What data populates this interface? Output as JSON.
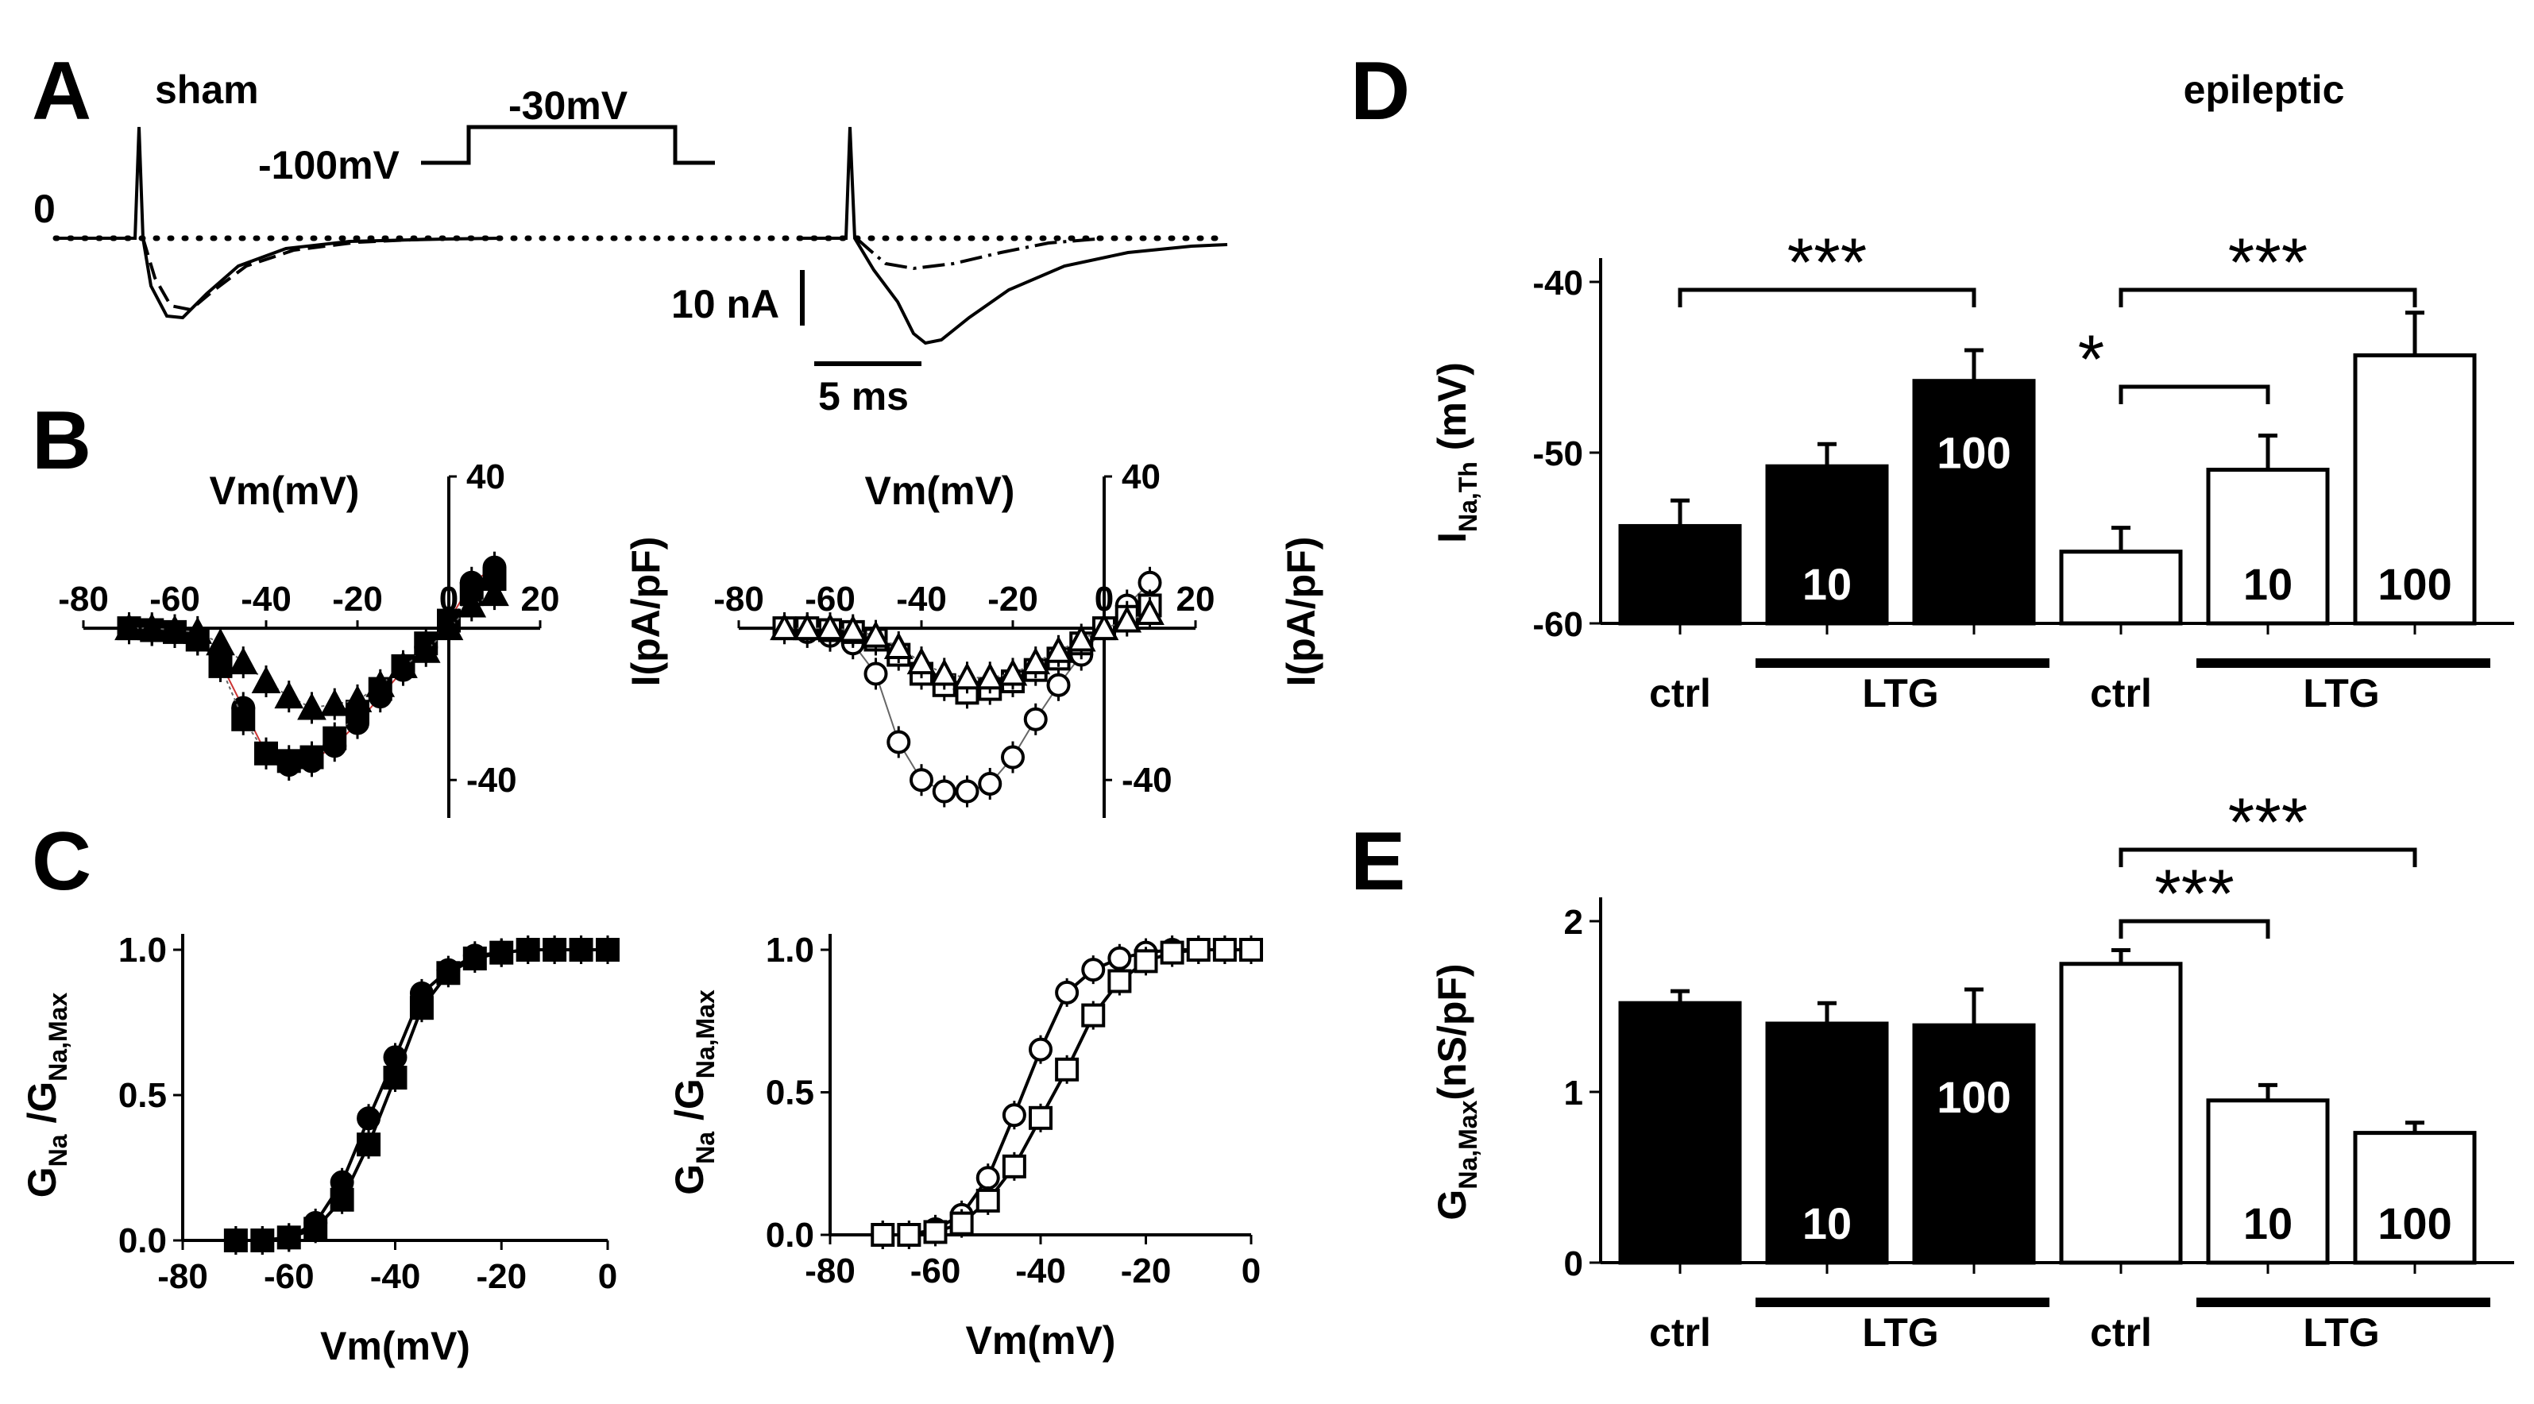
{
  "colors": {
    "ink": "#000000",
    "paper": "#ffffff",
    "red_fit": "#cc3333"
  },
  "chart_data": [
    {
      "panel": "A",
      "type": "line",
      "title": "sham",
      "protocol_labels": [
        "-100mV",
        "-30mV"
      ],
      "zero_label": "0",
      "scale_current": "10 nA",
      "scale_time": "5 ms",
      "traces": [
        {
          "name": "sham trace solid",
          "peak_nA": -16,
          "time_to_peak_ms": 1.2
        },
        {
          "name": "sham trace dashed",
          "peak_nA": -14,
          "time_to_peak_ms": 1.3
        },
        {
          "name": "epileptic trace solid",
          "peak_nA": -20,
          "time_to_peak_ms": 2.3
        },
        {
          "name": "epileptic trace dash-dot",
          "peak_nA": -5,
          "time_to_peak_ms": 1.3
        }
      ]
    },
    {
      "panel": "B-left",
      "type": "scatter",
      "xlabel": "Vm(mV)",
      "ylabel": "I(pA/pF)",
      "xlim": [
        -80,
        20
      ],
      "ylim": [
        -50,
        40
      ],
      "x_ticks": [
        "-80",
        "-60",
        "-40",
        "-20",
        "0",
        "20"
      ],
      "y_ticks": [
        "40",
        "-40"
      ],
      "x": [
        -70,
        -65,
        -60,
        -55,
        -50,
        -45,
        -40,
        -35,
        -30,
        -25,
        -20,
        -15,
        -10,
        -5,
        0,
        5,
        10
      ],
      "series": [
        {
          "name": "ctrl (sham)",
          "marker": "filled-circle",
          "values": [
            0,
            -0.5,
            -1,
            -3,
            -9,
            -21,
            -33,
            -36,
            -35,
            -31,
            -25,
            -18,
            -11,
            -5,
            2,
            12,
            16
          ]
        },
        {
          "name": "LTG 10 (sham)",
          "marker": "filled-square",
          "values": [
            0,
            -0.5,
            -1,
            -3,
            -10,
            -24,
            -33,
            -35,
            -34,
            -29,
            -22,
            -16,
            -10,
            -4,
            2,
            9,
            13
          ]
        },
        {
          "name": "LTG 100 (sham)",
          "marker": "filled-triangle",
          "values": [
            0,
            0,
            -0.5,
            -1,
            -4,
            -9,
            -14,
            -18,
            -21,
            -20,
            -19,
            -15,
            -10,
            -6,
            0,
            6,
            9
          ]
        }
      ]
    },
    {
      "panel": "B-right",
      "type": "scatter",
      "xlabel": "Vm(mV)",
      "ylabel": "I(pA/pF)",
      "xlim": [
        -80,
        20
      ],
      "ylim": [
        -50,
        40
      ],
      "x_ticks": [
        "-80",
        "-60",
        "-40",
        "-20",
        "0",
        "20"
      ],
      "y_ticks": [
        "40",
        "-40"
      ],
      "x": [
        -70,
        -65,
        -60,
        -55,
        -50,
        -45,
        -40,
        -35,
        -30,
        -25,
        -20,
        -15,
        -10,
        -5,
        0,
        5,
        10
      ],
      "series": [
        {
          "name": "ctrl (epileptic)",
          "marker": "open-circle",
          "values": [
            0,
            -1,
            -2,
            -4,
            -12,
            -30,
            -40,
            -43,
            -43,
            -41,
            -34,
            -24,
            -15,
            -7,
            0,
            6,
            12
          ]
        },
        {
          "name": "LTG 10 (epileptic)",
          "marker": "open-square",
          "values": [
            0,
            0,
            -0.5,
            -1,
            -3,
            -7,
            -12,
            -15,
            -17,
            -16,
            -14,
            -11,
            -8,
            -4,
            0,
            3,
            6
          ]
        },
        {
          "name": "LTG 100 (epileptic)",
          "marker": "open-triangle",
          "values": [
            0,
            0,
            0,
            -0.5,
            -2,
            -5,
            -9,
            -12,
            -13,
            -13,
            -12,
            -9,
            -6,
            -3,
            0,
            2,
            4
          ]
        }
      ]
    },
    {
      "panel": "C-left",
      "type": "scatter",
      "xlabel": "Vm(mV)",
      "ylabel_main": "G",
      "ylabel_sub1": "Na",
      "ylabel_mid": " /G",
      "ylabel_sub2": "Na,Max",
      "xlim": [
        -80,
        0
      ],
      "ylim": [
        0,
        1
      ],
      "x_ticks": [
        "-80",
        "-60",
        "-40",
        "-20",
        "0"
      ],
      "y_ticks": [
        "0.0",
        "0.5",
        "1.0"
      ],
      "x": [
        -70,
        -65,
        -60,
        -55,
        -50,
        -45,
        -40,
        -35,
        -30,
        -25,
        -20,
        -15,
        -10,
        -5,
        0
      ],
      "series": [
        {
          "name": "ctrl (sham)",
          "marker": "filled-circle",
          "values": [
            0,
            0,
            0.01,
            0.06,
            0.2,
            0.42,
            0.63,
            0.85,
            0.93,
            0.98,
            0.99,
            1,
            1,
            1,
            1
          ]
        },
        {
          "name": "LTG (sham)",
          "marker": "filled-square",
          "values": [
            0,
            0,
            0.01,
            0.04,
            0.14,
            0.33,
            0.56,
            0.8,
            0.92,
            0.97,
            0.99,
            1,
            1,
            1,
            1
          ]
        }
      ]
    },
    {
      "panel": "C-right",
      "type": "scatter",
      "xlabel": "Vm(mV)",
      "ylabel_main": "G",
      "ylabel_sub1": "Na",
      "ylabel_mid": " /G",
      "ylabel_sub2": "Na,Max",
      "xlim": [
        -80,
        0
      ],
      "ylim": [
        0,
        1
      ],
      "x_ticks": [
        "-80",
        "-60",
        "-40",
        "-20",
        "0"
      ],
      "y_ticks": [
        "0.0",
        "0.5",
        "1.0"
      ],
      "x": [
        -70,
        -65,
        -60,
        -55,
        -50,
        -45,
        -40,
        -35,
        -30,
        -25,
        -20,
        -15,
        -10,
        -5,
        0
      ],
      "series": [
        {
          "name": "ctrl (epileptic)",
          "marker": "open-circle",
          "values": [
            0,
            0,
            0.02,
            0.07,
            0.2,
            0.42,
            0.65,
            0.85,
            0.93,
            0.97,
            0.99,
            1,
            1,
            1,
            1
          ]
        },
        {
          "name": "LTG (epileptic)",
          "marker": "open-square",
          "values": [
            0,
            0,
            0.01,
            0.04,
            0.12,
            0.24,
            0.41,
            0.58,
            0.77,
            0.89,
            0.96,
            0.99,
            1,
            1,
            1
          ]
        }
      ]
    },
    {
      "panel": "D",
      "type": "bar",
      "title": "epileptic",
      "ylabel_main": "I",
      "ylabel_sub": "Na,Th",
      "ylabel_unit": " (mV)",
      "ylim": [
        -60,
        -40
      ],
      "y_ticks": [
        "-40",
        "-50",
        "-60"
      ],
      "categories": [
        "ctrl",
        "10",
        "100",
        "ctrl",
        "10",
        "100"
      ],
      "fills": [
        "black",
        "black",
        "black",
        "white",
        "white",
        "white"
      ],
      "values": [
        -54.3,
        -50.8,
        -45.8,
        -55.8,
        -51.0,
        -44.3
      ],
      "errors": [
        1.5,
        1.3,
        1.8,
        1.4,
        2.0,
        2.5
      ],
      "group_labels": [
        "ctrl",
        "LTG",
        "ctrl",
        "LTG"
      ],
      "significance": [
        {
          "from": 0,
          "to": 2,
          "label": "***"
        },
        {
          "from": 3,
          "to": 5,
          "label": "***"
        },
        {
          "from": 3,
          "to": 4,
          "label": "*"
        }
      ]
    },
    {
      "panel": "E",
      "type": "bar",
      "ylabel_main": "G",
      "ylabel_sub": "Na,Max",
      "ylabel_unit": "(nS/pF)",
      "ylim": [
        0,
        2
      ],
      "y_ticks": [
        "2",
        "1",
        "0"
      ],
      "categories": [
        "ctrl",
        "10",
        "100",
        "ctrl",
        "10",
        "100"
      ],
      "fills": [
        "black",
        "black",
        "black",
        "white",
        "white",
        "white"
      ],
      "values": [
        1.52,
        1.4,
        1.39,
        1.75,
        0.95,
        0.76
      ],
      "errors": [
        0.07,
        0.12,
        0.21,
        0.08,
        0.09,
        0.06
      ],
      "group_labels": [
        "ctrl",
        "LTG",
        "ctrl",
        "LTG"
      ],
      "significance": [
        {
          "from": 3,
          "to": 5,
          "label": "***"
        },
        {
          "from": 3,
          "to": 4,
          "label": "***"
        }
      ]
    }
  ],
  "panel_letters": [
    "A",
    "B",
    "C",
    "D",
    "E"
  ]
}
